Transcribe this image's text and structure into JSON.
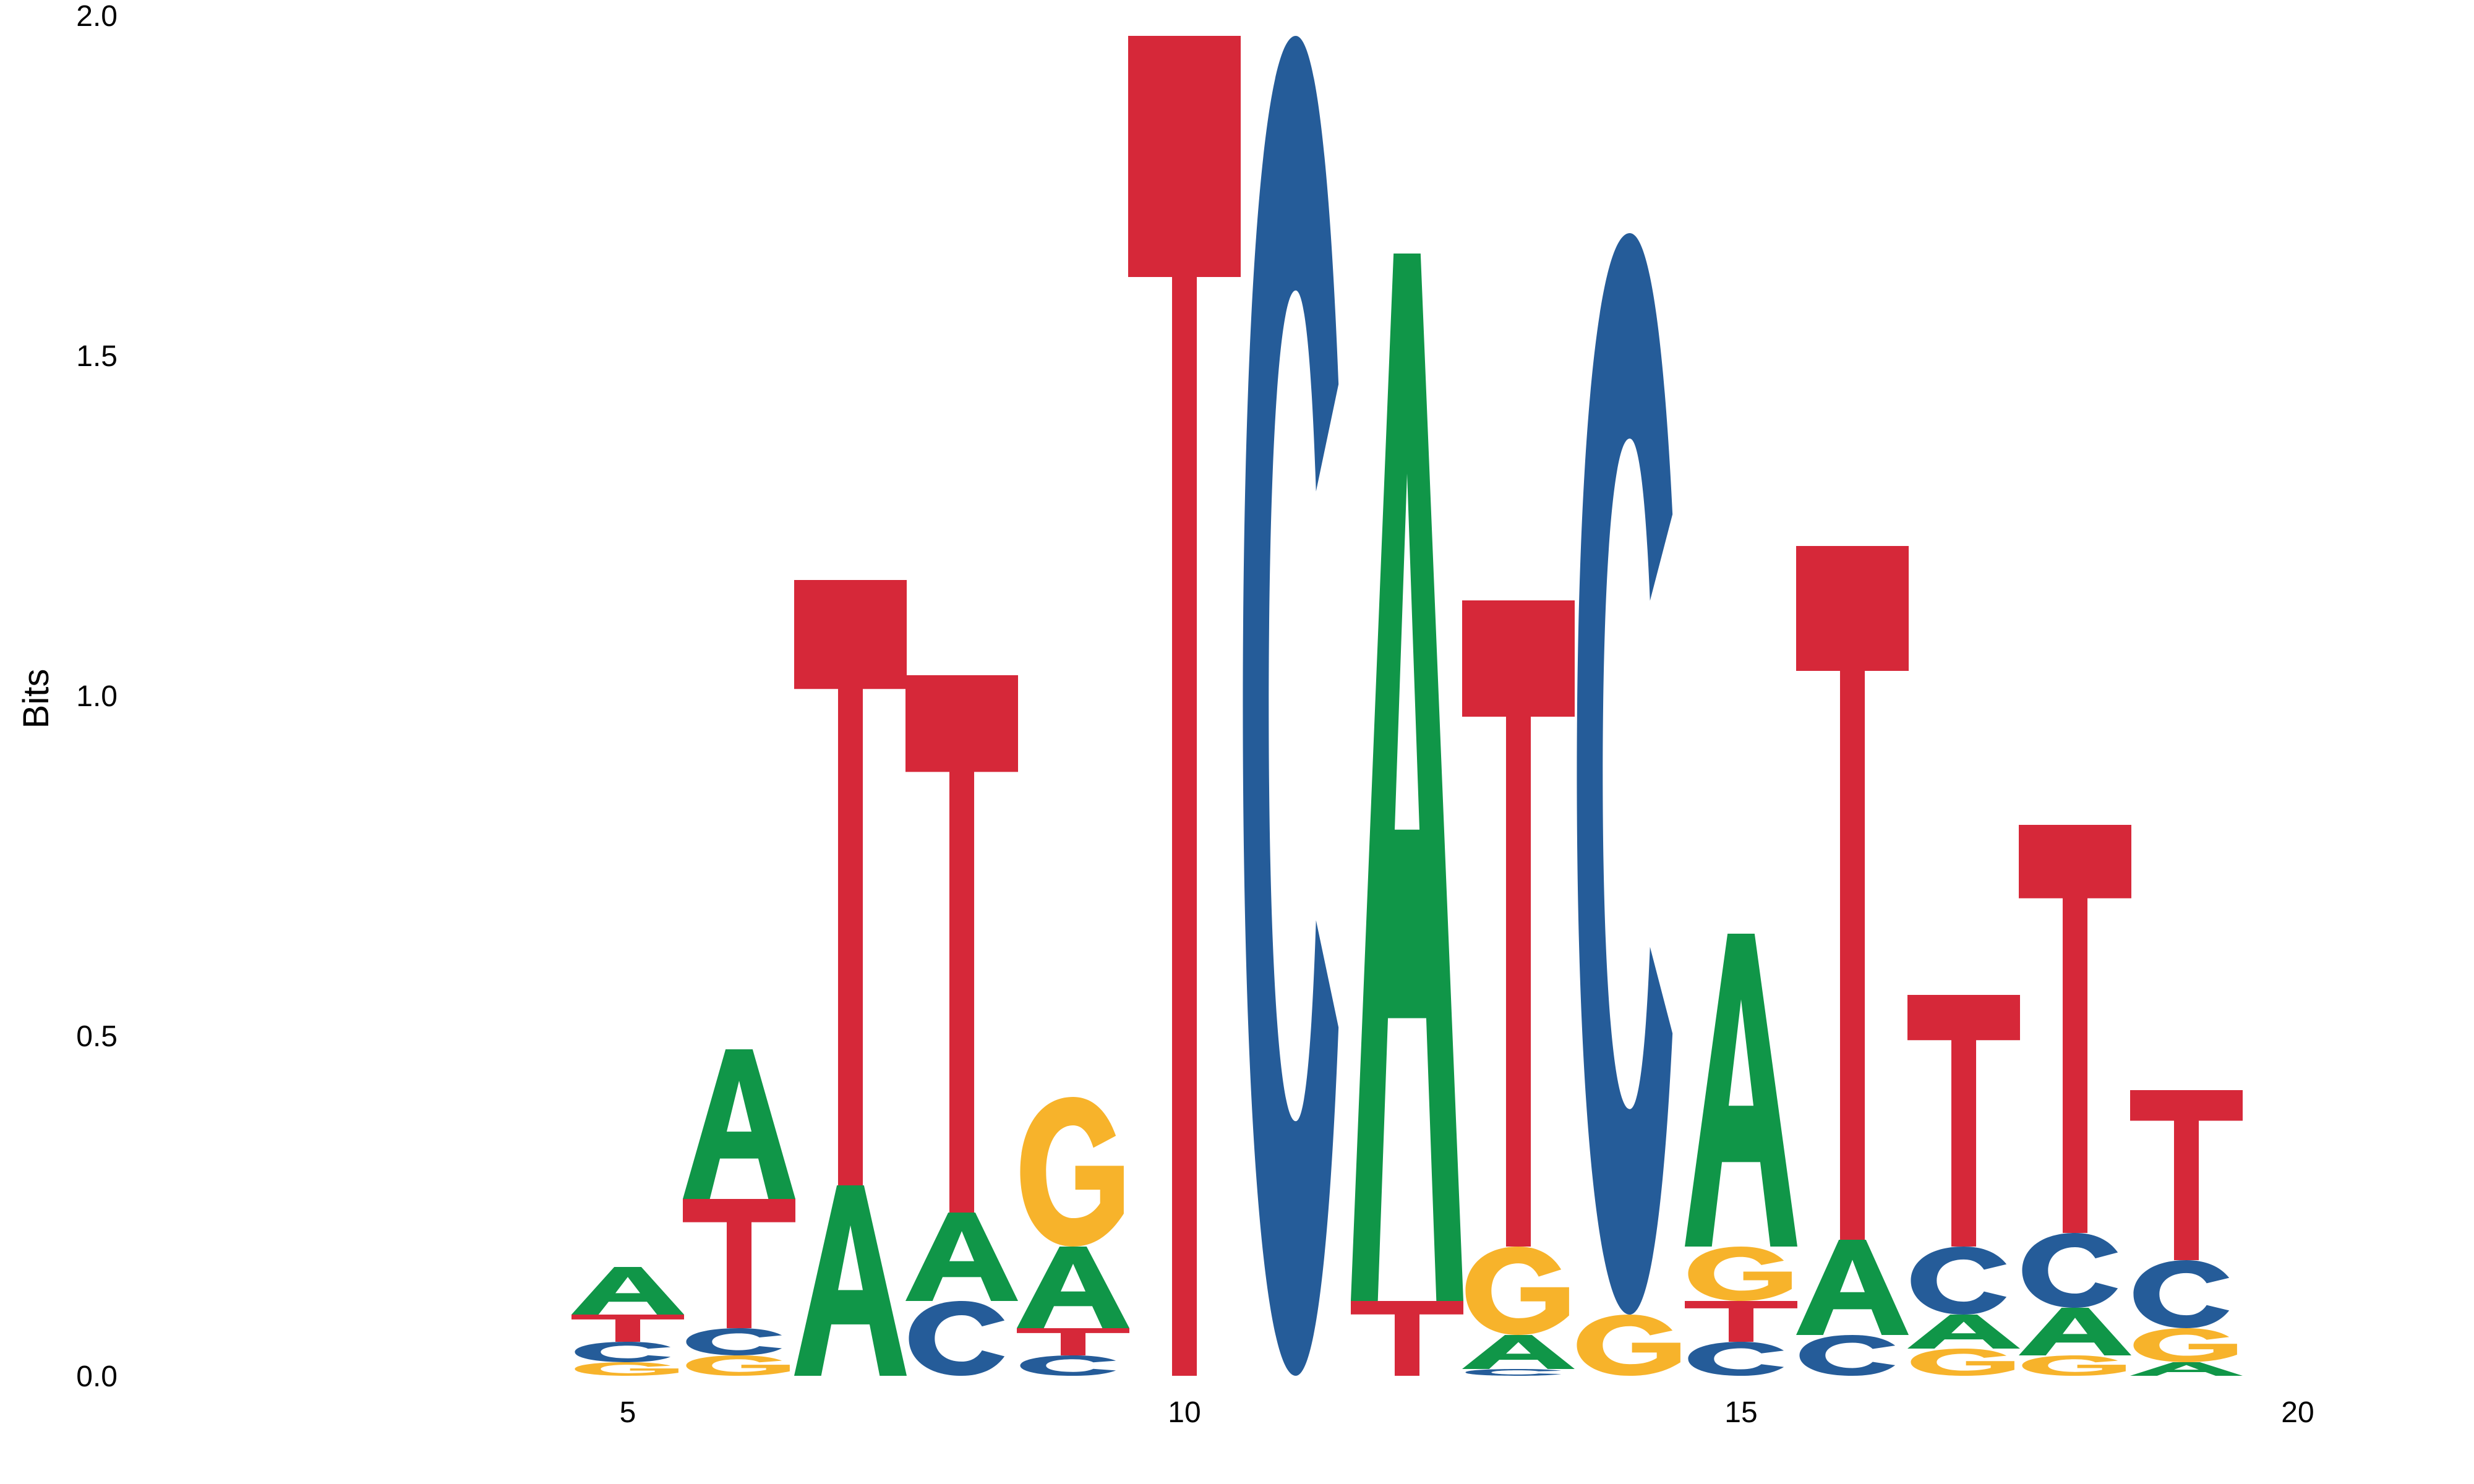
{
  "chart_data": {
    "type": "sequence-logo",
    "title": "",
    "xlabel": "",
    "ylabel": "Bits",
    "ylim": [
      0,
      2
    ],
    "yticks": [
      "0.0",
      "0.5",
      "1.0",
      "1.5",
      "2.0"
    ],
    "xticks": [
      "5",
      "10",
      "15",
      "20"
    ],
    "xlim": [
      1,
      20
    ],
    "grid": false,
    "colors": {
      "A": "#109648",
      "C": "#255C99",
      "G": "#F7B32B",
      "T": "#D62839"
    },
    "positions": [
      {
        "pos": 5,
        "stack": [
          {
            "letter": "G",
            "bits": 0.02
          },
          {
            "letter": "C",
            "bits": 0.03
          },
          {
            "letter": "T",
            "bits": 0.04
          },
          {
            "letter": "A",
            "bits": 0.07
          }
        ]
      },
      {
        "pos": 6,
        "stack": [
          {
            "letter": "G",
            "bits": 0.03
          },
          {
            "letter": "C",
            "bits": 0.04
          },
          {
            "letter": "T",
            "bits": 0.19
          },
          {
            "letter": "A",
            "bits": 0.22
          }
        ]
      },
      {
        "pos": 7,
        "stack": [
          {
            "letter": "A",
            "bits": 0.28
          },
          {
            "letter": "T",
            "bits": 0.89
          }
        ]
      },
      {
        "pos": 8,
        "stack": [
          {
            "letter": "C",
            "bits": 0.11
          },
          {
            "letter": "A",
            "bits": 0.13
          },
          {
            "letter": "T",
            "bits": 0.79
          }
        ]
      },
      {
        "pos": 9,
        "stack": [
          {
            "letter": "C",
            "bits": 0.03
          },
          {
            "letter": "T",
            "bits": 0.04
          },
          {
            "letter": "A",
            "bits": 0.12
          },
          {
            "letter": "G",
            "bits": 0.22
          }
        ]
      },
      {
        "pos": 10,
        "stack": [
          {
            "letter": "T",
            "bits": 1.97
          }
        ]
      },
      {
        "pos": 11,
        "stack": [
          {
            "letter": "C",
            "bits": 1.97
          }
        ]
      },
      {
        "pos": 12,
        "stack": [
          {
            "letter": "T",
            "bits": 0.11
          },
          {
            "letter": "A",
            "bits": 1.54
          }
        ]
      },
      {
        "pos": 13,
        "stack": [
          {
            "letter": "C",
            "bits": 0.01
          },
          {
            "letter": "A",
            "bits": 0.05
          },
          {
            "letter": "G",
            "bits": 0.13
          },
          {
            "letter": "T",
            "bits": 0.95
          }
        ]
      },
      {
        "pos": 14,
        "stack": [
          {
            "letter": "G",
            "bits": 0.09
          },
          {
            "letter": "C",
            "bits": 1.59
          }
        ]
      },
      {
        "pos": 15,
        "stack": [
          {
            "letter": "C",
            "bits": 0.05
          },
          {
            "letter": "T",
            "bits": 0.06
          },
          {
            "letter": "G",
            "bits": 0.08
          },
          {
            "letter": "A",
            "bits": 0.46
          }
        ]
      },
      {
        "pos": 16,
        "stack": [
          {
            "letter": "C",
            "bits": 0.06
          },
          {
            "letter": "A",
            "bits": 0.14
          },
          {
            "letter": "T",
            "bits": 1.02
          }
        ]
      },
      {
        "pos": 17,
        "stack": [
          {
            "letter": "G",
            "bits": 0.04
          },
          {
            "letter": "A",
            "bits": 0.05
          },
          {
            "letter": "C",
            "bits": 0.1
          },
          {
            "letter": "T",
            "bits": 0.37
          }
        ]
      },
      {
        "pos": 18,
        "stack": [
          {
            "letter": "G",
            "bits": 0.03
          },
          {
            "letter": "A",
            "bits": 0.07
          },
          {
            "letter": "C",
            "bits": 0.11
          },
          {
            "letter": "T",
            "bits": 0.6
          }
        ]
      },
      {
        "pos": 19,
        "stack": [
          {
            "letter": "A",
            "bits": 0.02
          },
          {
            "letter": "G",
            "bits": 0.05
          },
          {
            "letter": "C",
            "bits": 0.1
          },
          {
            "letter": "T",
            "bits": 0.25
          }
        ]
      }
    ]
  }
}
